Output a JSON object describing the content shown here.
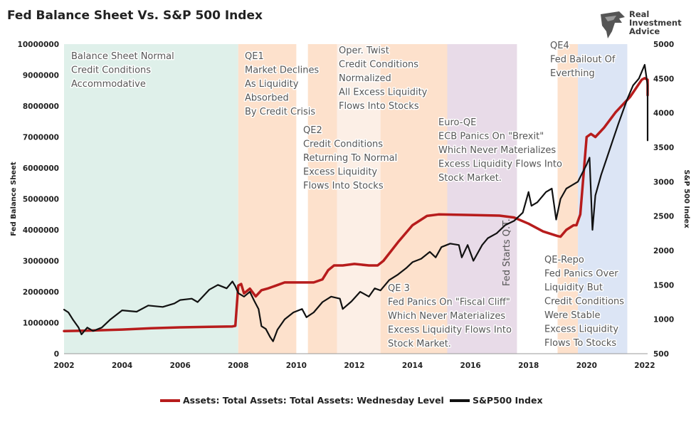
{
  "title": "Fed Balance Sheet Vs. S&P 500 Index",
  "logo": {
    "line1": "Real",
    "line2": "Investment",
    "line3": "Advice",
    "icon": "eagle-head-icon"
  },
  "chart_data": {
    "type": "line",
    "title": "Fed Balance Sheet Vs. S&P 500 Index",
    "y_left_label": "Fed Balance Sheet",
    "y_right_label": "S&P 500 Index",
    "y_left_range": [
      0,
      10000000
    ],
    "y_right_range": [
      500,
      5000
    ],
    "x_range": [
      2002,
      2022.4
    ],
    "x_ticks": [
      "2002",
      "2004",
      "2006",
      "2008",
      "2010",
      "2012",
      "2014",
      "2016",
      "2018",
      "2020",
      "2022"
    ],
    "y_left_ticks": [
      "0",
      "1000000",
      "2000000",
      "3000000",
      "4000000",
      "5000000",
      "6000000",
      "7000000",
      "8000000",
      "9000000",
      "10000000"
    ],
    "y_right_ticks": [
      "500",
      "1000",
      "1500",
      "2000",
      "2500",
      "3000",
      "3500",
      "4000",
      "4500",
      "5000"
    ],
    "legend_position": "bottom",
    "series": [
      {
        "name": "Assets: Total Assets: Total Assets: Wednesday Level",
        "axis": "left",
        "color": "#b71c1c",
        "points": [
          [
            2002.0,
            730000
          ],
          [
            2003.0,
            750000
          ],
          [
            2004.0,
            780000
          ],
          [
            2005.0,
            820000
          ],
          [
            2006.0,
            850000
          ],
          [
            2007.0,
            870000
          ],
          [
            2007.8,
            880000
          ],
          [
            2007.9,
            900000
          ],
          [
            2008.0,
            2200000
          ],
          [
            2008.1,
            2250000
          ],
          [
            2008.2,
            1950000
          ],
          [
            2008.4,
            2100000
          ],
          [
            2008.6,
            1850000
          ],
          [
            2008.8,
            2050000
          ],
          [
            2009.0,
            2100000
          ],
          [
            2009.3,
            2200000
          ],
          [
            2009.6,
            2300000
          ],
          [
            2010.0,
            2300000
          ],
          [
            2010.3,
            2300000
          ],
          [
            2010.6,
            2300000
          ],
          [
            2010.9,
            2400000
          ],
          [
            2011.1,
            2700000
          ],
          [
            2011.3,
            2850000
          ],
          [
            2011.6,
            2850000
          ],
          [
            2012.0,
            2900000
          ],
          [
            2012.5,
            2850000
          ],
          [
            2012.8,
            2850000
          ],
          [
            2013.0,
            3000000
          ],
          [
            2013.5,
            3600000
          ],
          [
            2014.0,
            4150000
          ],
          [
            2014.5,
            4450000
          ],
          [
            2014.9,
            4500000
          ],
          [
            2016.0,
            4480000
          ],
          [
            2017.0,
            4460000
          ],
          [
            2017.5,
            4400000
          ],
          [
            2018.0,
            4200000
          ],
          [
            2018.5,
            3950000
          ],
          [
            2019.0,
            3800000
          ],
          [
            2019.1,
            3780000
          ],
          [
            2019.3,
            4000000
          ],
          [
            2019.55,
            4150000
          ],
          [
            2019.65,
            4150000
          ],
          [
            2019.78,
            4500000
          ],
          [
            2020.0,
            7000000
          ],
          [
            2020.15,
            7100000
          ],
          [
            2020.3,
            7000000
          ],
          [
            2020.6,
            7300000
          ],
          [
            2021.0,
            7800000
          ],
          [
            2021.5,
            8300000
          ],
          [
            2021.9,
            8850000
          ],
          [
            2022.0,
            8900000
          ],
          [
            2022.2,
            8850000
          ],
          [
            2022.4,
            8800000
          ],
          [
            2022.7,
            8600000
          ],
          [
            2022.9,
            8550000
          ],
          [
            2023.0,
            8350000
          ],
          [
            2023.2,
            8500000
          ],
          [
            2023.3,
            8700000
          ]
        ]
      },
      {
        "name": "S&P500 Index",
        "axis": "right",
        "color": "#111111",
        "points": [
          [
            2002.0,
            1140
          ],
          [
            2002.15,
            1100
          ],
          [
            2002.3,
            1000
          ],
          [
            2002.5,
            880
          ],
          [
            2002.6,
            780
          ],
          [
            2002.8,
            880
          ],
          [
            2003.0,
            830
          ],
          [
            2003.3,
            880
          ],
          [
            2003.6,
            1000
          ],
          [
            2004.0,
            1130
          ],
          [
            2004.5,
            1110
          ],
          [
            2004.9,
            1200
          ],
          [
            2005.4,
            1180
          ],
          [
            2005.8,
            1230
          ],
          [
            2006.0,
            1280
          ],
          [
            2006.4,
            1300
          ],
          [
            2006.6,
            1250
          ],
          [
            2007.0,
            1430
          ],
          [
            2007.3,
            1500
          ],
          [
            2007.6,
            1450
          ],
          [
            2007.8,
            1550
          ],
          [
            2007.9,
            1480
          ],
          [
            2008.0,
            1380
          ],
          [
            2008.2,
            1330
          ],
          [
            2008.4,
            1400
          ],
          [
            2008.55,
            1270
          ],
          [
            2008.7,
            1150
          ],
          [
            2008.8,
            900
          ],
          [
            2008.95,
            860
          ],
          [
            2009.1,
            740
          ],
          [
            2009.2,
            680
          ],
          [
            2009.35,
            850
          ],
          [
            2009.6,
            1000
          ],
          [
            2009.9,
            1100
          ],
          [
            2010.2,
            1150
          ],
          [
            2010.35,
            1030
          ],
          [
            2010.6,
            1100
          ],
          [
            2010.9,
            1250
          ],
          [
            2011.2,
            1330
          ],
          [
            2011.5,
            1300
          ],
          [
            2011.6,
            1150
          ],
          [
            2011.9,
            1260
          ],
          [
            2012.2,
            1400
          ],
          [
            2012.5,
            1330
          ],
          [
            2012.7,
            1450
          ],
          [
            2012.9,
            1420
          ],
          [
            2013.2,
            1570
          ],
          [
            2013.5,
            1650
          ],
          [
            2013.8,
            1750
          ],
          [
            2014.0,
            1830
          ],
          [
            2014.3,
            1880
          ],
          [
            2014.6,
            1980
          ],
          [
            2014.8,
            1900
          ],
          [
            2015.0,
            2050
          ],
          [
            2015.3,
            2100
          ],
          [
            2015.6,
            2080
          ],
          [
            2015.7,
            1900
          ],
          [
            2015.9,
            2080
          ],
          [
            2016.1,
            1850
          ],
          [
            2016.4,
            2080
          ],
          [
            2016.6,
            2180
          ],
          [
            2016.9,
            2250
          ],
          [
            2017.2,
            2370
          ],
          [
            2017.5,
            2430
          ],
          [
            2017.8,
            2550
          ],
          [
            2018.0,
            2850
          ],
          [
            2018.1,
            2650
          ],
          [
            2018.3,
            2700
          ],
          [
            2018.6,
            2850
          ],
          [
            2018.8,
            2900
          ],
          [
            2018.95,
            2450
          ],
          [
            2019.1,
            2750
          ],
          [
            2019.3,
            2900
          ],
          [
            2019.5,
            2950
          ],
          [
            2019.7,
            3000
          ],
          [
            2020.0,
            3250
          ],
          [
            2020.1,
            3350
          ],
          [
            2020.2,
            2300
          ],
          [
            2020.3,
            2800
          ],
          [
            2020.5,
            3100
          ],
          [
            2020.7,
            3350
          ],
          [
            2020.9,
            3600
          ],
          [
            2021.1,
            3850
          ],
          [
            2021.4,
            4200
          ],
          [
            2021.6,
            4400
          ],
          [
            2021.8,
            4500
          ],
          [
            2022.0,
            4700
          ],
          [
            2022.1,
            4400
          ],
          [
            2022.3,
            4200
          ],
          [
            2022.45,
            3800
          ],
          [
            2022.6,
            3900
          ],
          [
            2022.75,
            4150
          ],
          [
            2022.9,
            3600
          ],
          [
            2023.0,
            3850
          ],
          [
            2023.1,
            3950
          ],
          [
            2023.2,
            4000
          ],
          [
            2023.3,
            4100
          ]
        ]
      }
    ],
    "bands": [
      {
        "from": 2002.0,
        "to": 2008.0,
        "color": "#dff0ea"
      },
      {
        "from": 2008.0,
        "to": 2010.0,
        "color": "#fde1cc"
      },
      {
        "from": 2010.4,
        "to": 2011.4,
        "color": "#fde1cc"
      },
      {
        "from": 2011.4,
        "to": 2012.9,
        "color": "#fcefe6"
      },
      {
        "from": 2012.9,
        "to": 2015.2,
        "color": "#fde1cc"
      },
      {
        "from": 2015.2,
        "to": 2017.6,
        "color": "#e8dbe8"
      },
      {
        "from": 2019.0,
        "to": 2019.7,
        "color": "#fde1cc"
      },
      {
        "from": 2019.7,
        "to": 2021.4,
        "color": "#dce5f5"
      }
    ],
    "annotations": [
      {
        "lines": [
          "Balance Sheet Normal",
          "Credit Conditions",
          "Accommodative"
        ]
      },
      {
        "lines": [
          "QE1",
          "Market Declines",
          "As Liquidity",
          "Absorbed",
          "By Credit Crisis"
        ]
      },
      {
        "lines": [
          "QE2",
          "Credit Conditions",
          "Returning To Normal",
          "Excess Liquidity",
          "Flows Into Stocks"
        ]
      },
      {
        "lines": [
          "Oper. Twist",
          "Credit Conditions",
          "Normalized",
          "All Excess Liquidity",
          "Flows Into Stocks"
        ]
      },
      {
        "lines": [
          "Euro-QE",
          "ECB Panics On \"Brexit\"",
          "Which Never Materializes",
          "Excess Liquidity Flows Into",
          "Stock Market."
        ]
      },
      {
        "lines": [
          "QE4",
          "Fed Bailout Of",
          "Everthing"
        ]
      },
      {
        "lines": [
          "QE 3",
          "Fed Panics On \"Fiscal Cliff\"",
          "Which Never Materializes",
          "Excess Liquidity Flows Into",
          "Stock Market."
        ]
      },
      {
        "lines": [
          "QE-Repo",
          "Fed Panics Over",
          "Liquidity But",
          "Credit Conditions",
          "Were Stable",
          "Excess Liquidity",
          "Flows To Stocks"
        ]
      },
      {
        "lines": [
          "Fed Starts Q.T."
        ]
      }
    ]
  },
  "legend": [
    {
      "label": "Assets: Total Assets: Total Assets: Wednesday Level",
      "color": "#b71c1c"
    },
    {
      "label": "S&P500 Index",
      "color": "#111111"
    }
  ]
}
